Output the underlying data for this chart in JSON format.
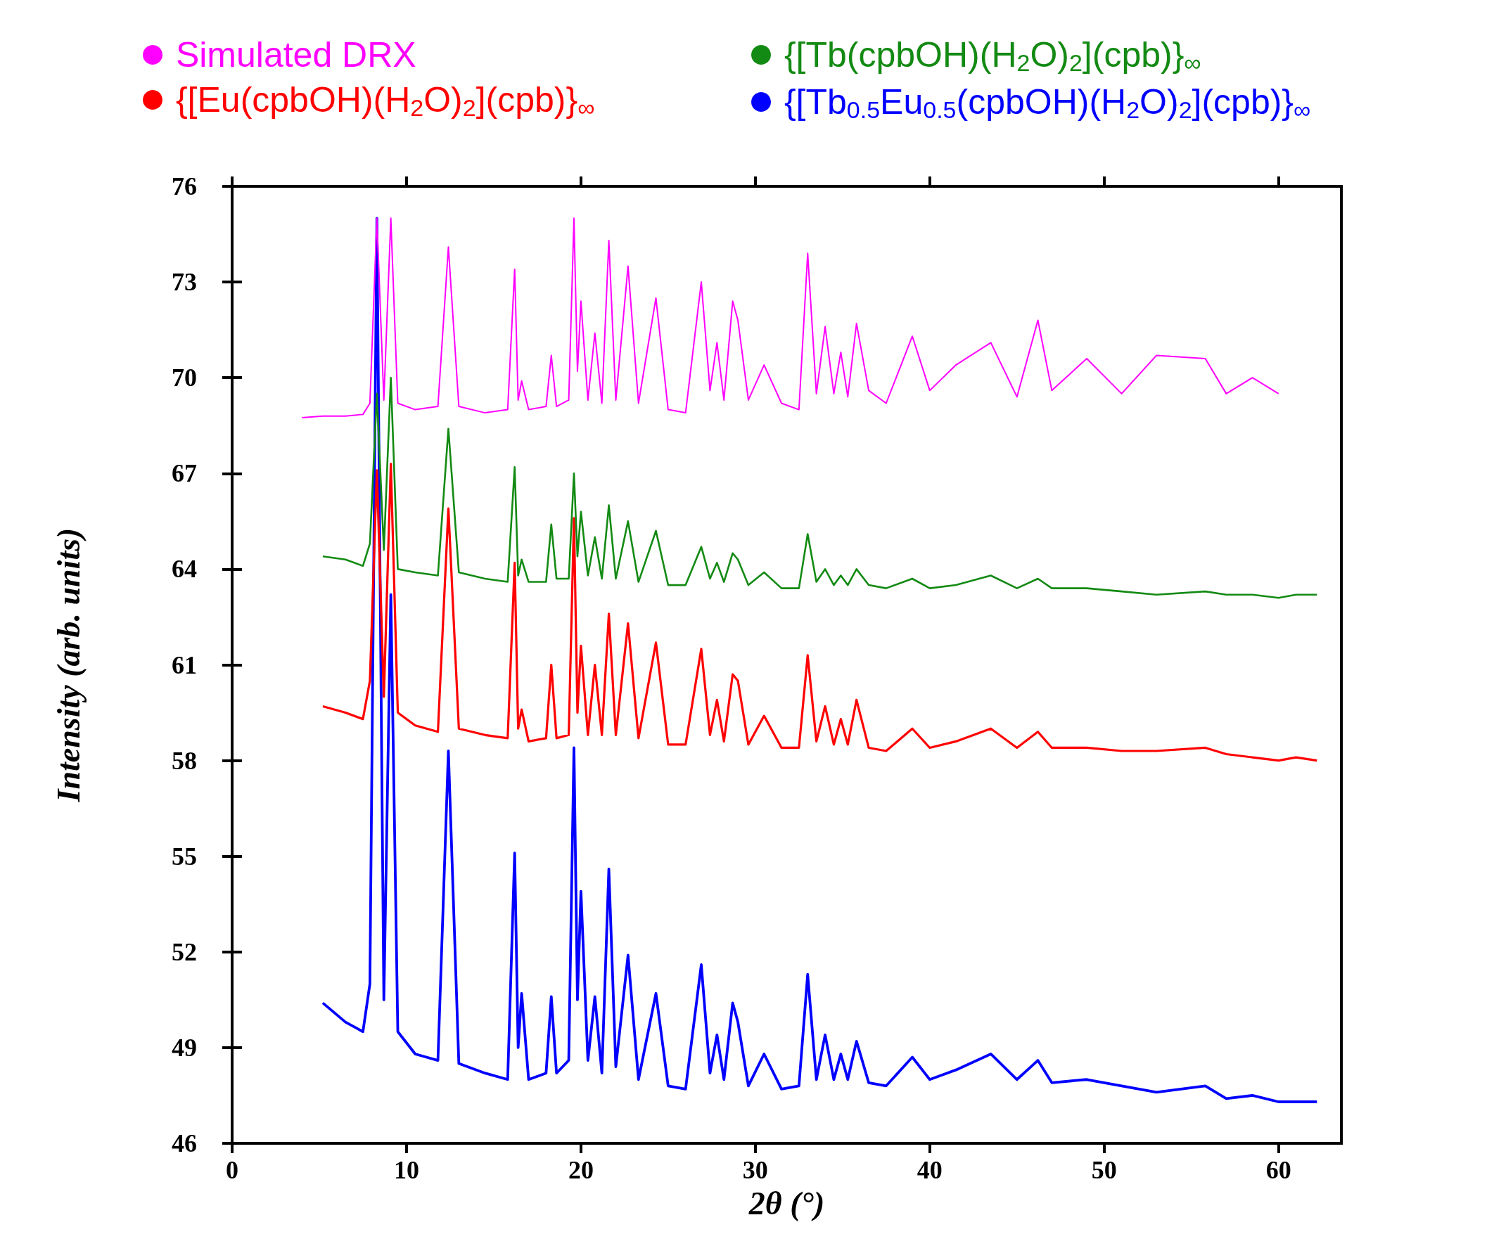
{
  "chart_data": {
    "type": "line",
    "xlabel": "2θ (°)",
    "ylabel": "Intensity (arb. units)",
    "xlim": [
      0,
      63.6
    ],
    "xticks": [
      0,
      10,
      20,
      30,
      40,
      50,
      60
    ],
    "ylim": [
      46,
      76
    ],
    "yticks": [
      46,
      49,
      52,
      55,
      58,
      61,
      64,
      67,
      70,
      73,
      76
    ],
    "grid": false,
    "legend": "top",
    "marker": "none",
    "line_style": "solid",
    "x": [
      4,
      5.2,
      6.5,
      7.5,
      7.9,
      8.3,
      8.7,
      9.1,
      9.5,
      10.5,
      11.8,
      12.4,
      13,
      14.5,
      15.8,
      16.2,
      16.4,
      16.6,
      17,
      18,
      18.3,
      18.6,
      19.3,
      19.6,
      19.8,
      20.0,
      20.4,
      20.8,
      21.2,
      21.6,
      22,
      22.7,
      23.3,
      24.3,
      25,
      26,
      26.9,
      27.4,
      27.8,
      28.2,
      28.7,
      29.0,
      29.6,
      30.5,
      31.5,
      32.5,
      33.0,
      33.5,
      34.0,
      34.5,
      34.9,
      35.3,
      35.8,
      36.5,
      37.5,
      39,
      40,
      41.5,
      43.5,
      45,
      46.2,
      47,
      49,
      51,
      53,
      55.8,
      57,
      58.5,
      60,
      61,
      62.2
    ],
    "series": [
      {
        "name": "Simulated DRX",
        "color": "#ff00ff",
        "values": [
          68.75,
          68.8,
          68.8,
          68.85,
          69.2,
          75.0,
          69.3,
          75.0,
          69.2,
          69.0,
          69.1,
          74.1,
          69.1,
          68.9,
          69.0,
          73.4,
          69.3,
          69.9,
          69.0,
          69.1,
          70.7,
          69.1,
          69.3,
          75.0,
          70.2,
          72.4,
          69.3,
          71.4,
          69.2,
          74.3,
          69.3,
          73.5,
          69.2,
          72.5,
          69.0,
          68.9,
          73.0,
          69.6,
          71.1,
          69.3,
          72.4,
          71.8,
          69.3,
          70.4,
          69.2,
          69.0,
          73.9,
          69.5,
          71.6,
          69.5,
          70.8,
          69.4,
          71.7,
          69.6,
          69.2,
          71.3,
          69.6,
          70.4,
          71.1,
          69.4,
          71.8,
          69.6,
          70.6,
          69.5,
          70.7,
          70.6,
          69.5,
          70.0,
          69.5,
          null,
          null
        ]
      },
      {
        "name": "{[Tb(cpbOH)(H$_{2}$O)$_{2}$](cpb)}$_{∞}$",
        "color": "#138a13",
        "values": [
          null,
          64.4,
          64.3,
          64.1,
          64.8,
          69.5,
          64.6,
          70.0,
          64.0,
          63.9,
          63.8,
          68.4,
          63.9,
          63.7,
          63.6,
          67.2,
          63.8,
          64.3,
          63.6,
          63.6,
          65.4,
          63.7,
          63.7,
          67.0,
          64.4,
          65.8,
          63.8,
          65.0,
          63.7,
          66.0,
          63.7,
          65.5,
          63.6,
          65.2,
          63.5,
          63.5,
          64.7,
          63.7,
          64.2,
          63.6,
          64.5,
          64.3,
          63.5,
          63.9,
          63.4,
          63.4,
          65.1,
          63.6,
          64.0,
          63.5,
          63.8,
          63.5,
          64.0,
          63.5,
          63.4,
          63.7,
          63.4,
          63.5,
          63.8,
          63.4,
          63.7,
          63.4,
          63.4,
          63.3,
          63.2,
          63.3,
          63.2,
          63.2,
          63.1,
          63.2,
          63.2
        ]
      },
      {
        "name": "{[Eu(cpbOH)(H$_{2}$O)$_{2}$](cpb)}$_{∞}$",
        "color": "#ff0000",
        "values": [
          null,
          59.7,
          59.5,
          59.3,
          60.5,
          67.1,
          60.0,
          67.3,
          59.5,
          59.1,
          58.9,
          65.9,
          59.0,
          58.8,
          58.7,
          64.2,
          59.0,
          59.6,
          58.6,
          58.7,
          61.0,
          58.7,
          58.8,
          65.6,
          59.5,
          61.6,
          58.8,
          61.0,
          58.8,
          62.6,
          58.8,
          62.3,
          58.7,
          61.7,
          58.5,
          58.5,
          61.5,
          58.8,
          59.9,
          58.6,
          60.7,
          60.5,
          58.5,
          59.4,
          58.4,
          58.4,
          61.3,
          58.6,
          59.7,
          58.5,
          59.3,
          58.5,
          59.9,
          58.4,
          58.3,
          59.0,
          58.4,
          58.6,
          59.0,
          58.4,
          58.9,
          58.4,
          58.4,
          58.3,
          58.3,
          58.4,
          58.2,
          58.1,
          58.0,
          58.1,
          58.0
        ]
      },
      {
        "name": "{[Tb$_{0.5}$Eu$_{0.5}$(cpbOH)(H$_{2}$O)$_{2}$](cpb)}$_{∞}$",
        "color": "#0000ff",
        "values": [
          null,
          50.4,
          49.8,
          49.5,
          51.0,
          75.0,
          50.5,
          63.2,
          49.5,
          48.8,
          48.6,
          58.3,
          48.5,
          48.2,
          48.0,
          55.1,
          49.0,
          50.7,
          48.0,
          48.2,
          50.6,
          48.2,
          48.6,
          58.4,
          50.5,
          53.9,
          48.6,
          50.6,
          48.2,
          54.6,
          48.4,
          51.9,
          48.0,
          50.7,
          47.8,
          47.7,
          51.6,
          48.2,
          49.4,
          48.0,
          50.4,
          49.8,
          47.8,
          48.8,
          47.7,
          47.8,
          51.3,
          48.0,
          49.4,
          48.0,
          48.8,
          48.0,
          49.2,
          47.9,
          47.8,
          48.7,
          48.0,
          48.3,
          48.8,
          48.0,
          48.6,
          47.9,
          48.0,
          47.8,
          47.6,
          47.8,
          47.4,
          47.5,
          47.3,
          47.3,
          47.3
        ]
      }
    ]
  }
}
